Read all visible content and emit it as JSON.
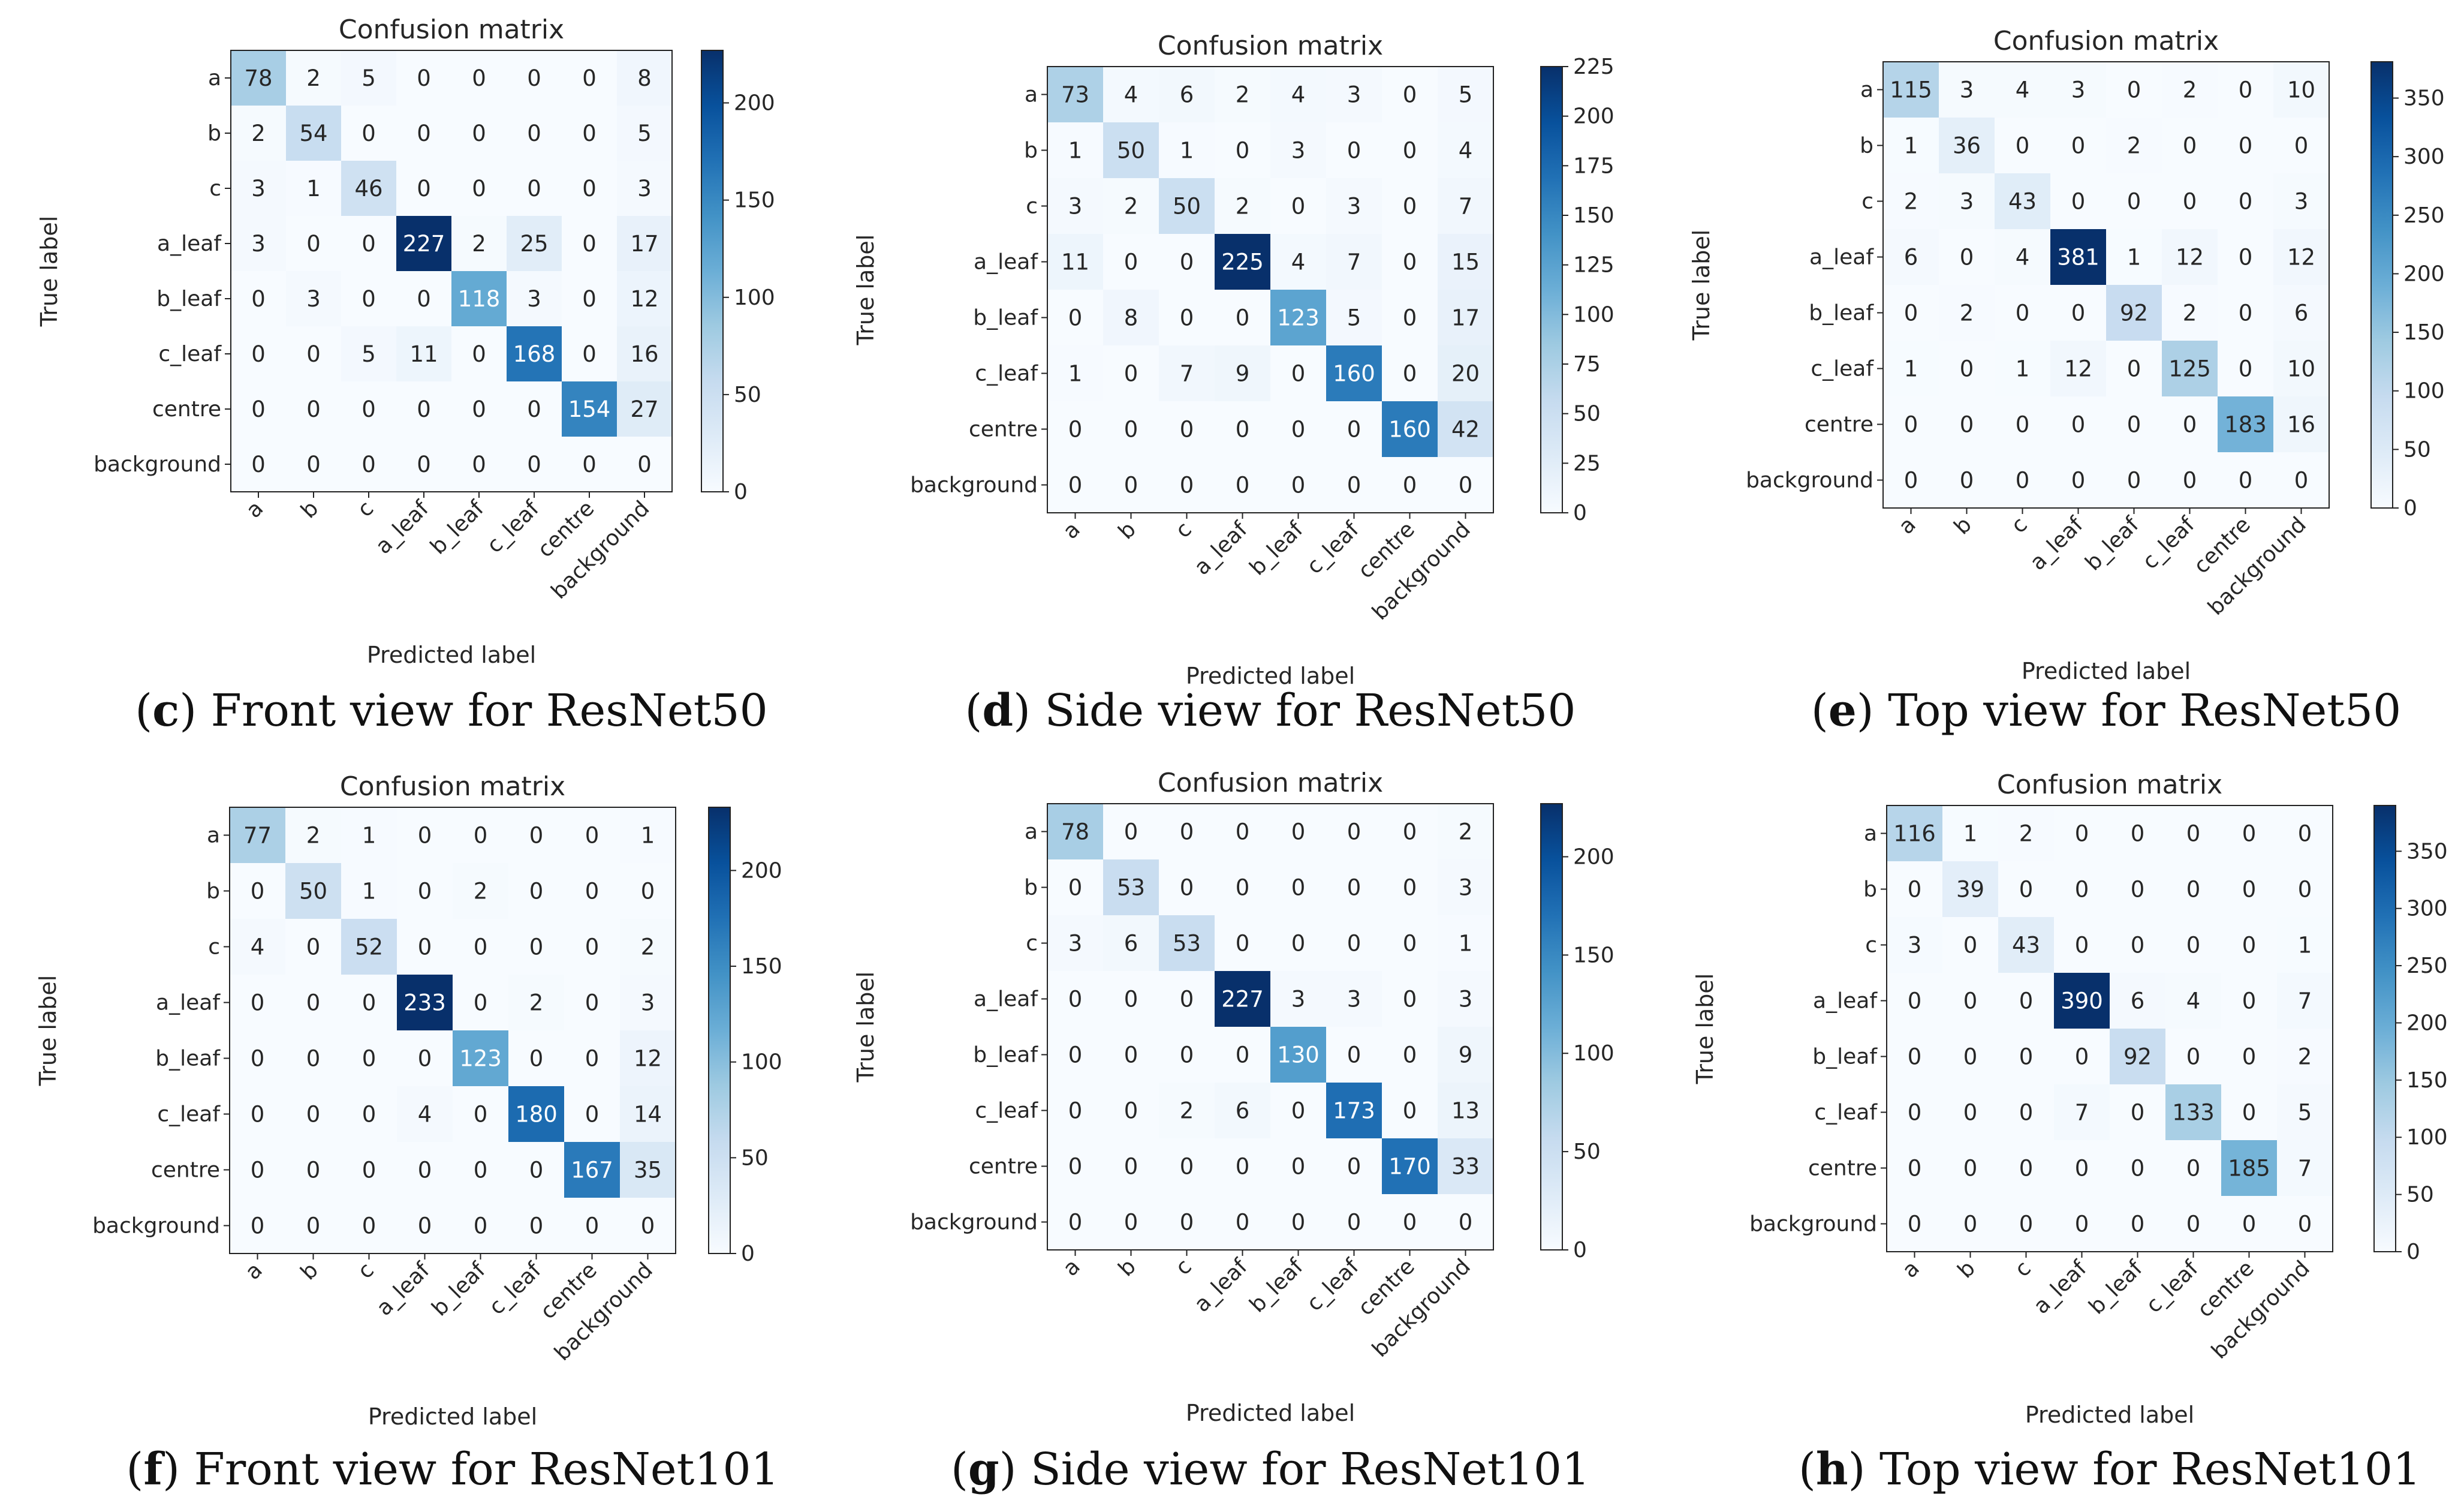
{
  "colors": {
    "low": "#f7fbff",
    "high": "#08306b",
    "text_dark": "#262626",
    "text_light": "#ffffff"
  },
  "chart_data": [
    {
      "type": "heatmap",
      "title": "Confusion matrix",
      "xlabel": "Predicted label",
      "ylabel": "True label",
      "row_labels": [
        "a",
        "b",
        "c",
        "a_leaf",
        "b_leaf",
        "c_leaf",
        "centre",
        "background"
      ],
      "col_labels": [
        "a",
        "b",
        "c",
        "a_leaf",
        "b_leaf",
        "c_leaf",
        "centre",
        "background"
      ],
      "values": [
        [
          78,
          2,
          5,
          0,
          0,
          0,
          0,
          8
        ],
        [
          2,
          54,
          0,
          0,
          0,
          0,
          0,
          5
        ],
        [
          3,
          1,
          46,
          0,
          0,
          0,
          0,
          3
        ],
        [
          3,
          0,
          0,
          227,
          2,
          25,
          0,
          17
        ],
        [
          0,
          3,
          0,
          0,
          118,
          3,
          0,
          12
        ],
        [
          0,
          0,
          5,
          11,
          0,
          168,
          0,
          16
        ],
        [
          0,
          0,
          0,
          0,
          0,
          0,
          154,
          27
        ],
        [
          0,
          0,
          0,
          0,
          0,
          0,
          0,
          0
        ]
      ],
      "colorbar_max": 227,
      "colorbar_ticks": [
        0,
        50,
        100,
        150,
        200
      ],
      "caption_letter": "c",
      "caption_text": "Front view for ResNet50"
    },
    {
      "type": "heatmap",
      "title": "Confusion matrix",
      "xlabel": "Predicted label",
      "ylabel": "True label",
      "row_labels": [
        "a",
        "b",
        "c",
        "a_leaf",
        "b_leaf",
        "c_leaf",
        "centre",
        "background"
      ],
      "col_labels": [
        "a",
        "b",
        "c",
        "a_leaf",
        "b_leaf",
        "c_leaf",
        "centre",
        "background"
      ],
      "values": [
        [
          73,
          4,
          6,
          2,
          4,
          3,
          0,
          5
        ],
        [
          1,
          50,
          1,
          0,
          3,
          0,
          0,
          4
        ],
        [
          3,
          2,
          50,
          2,
          0,
          3,
          0,
          7
        ],
        [
          11,
          0,
          0,
          225,
          4,
          7,
          0,
          15
        ],
        [
          0,
          8,
          0,
          0,
          123,
          5,
          0,
          17
        ],
        [
          1,
          0,
          7,
          9,
          0,
          160,
          0,
          20
        ],
        [
          0,
          0,
          0,
          0,
          0,
          0,
          160,
          42
        ],
        [
          0,
          0,
          0,
          0,
          0,
          0,
          0,
          0
        ]
      ],
      "colorbar_max": 225,
      "colorbar_ticks": [
        0,
        25,
        50,
        75,
        100,
        125,
        150,
        175,
        200,
        225
      ],
      "caption_letter": "d",
      "caption_text": "Side view for ResNet50"
    },
    {
      "type": "heatmap",
      "title": "Confusion matrix",
      "xlabel": "Predicted label",
      "ylabel": "True label",
      "row_labels": [
        "a",
        "b",
        "c",
        "a_leaf",
        "b_leaf",
        "c_leaf",
        "centre",
        "background"
      ],
      "col_labels": [
        "a",
        "b",
        "c",
        "a_leaf",
        "b_leaf",
        "c_leaf",
        "centre",
        "background"
      ],
      "values": [
        [
          115,
          3,
          4,
          3,
          0,
          2,
          0,
          10
        ],
        [
          1,
          36,
          0,
          0,
          2,
          0,
          0,
          0
        ],
        [
          2,
          3,
          43,
          0,
          0,
          0,
          0,
          3
        ],
        [
          6,
          0,
          4,
          381,
          1,
          12,
          0,
          12
        ],
        [
          0,
          2,
          0,
          0,
          92,
          2,
          0,
          6
        ],
        [
          1,
          0,
          1,
          12,
          0,
          125,
          0,
          10
        ],
        [
          0,
          0,
          0,
          0,
          0,
          0,
          183,
          16
        ],
        [
          0,
          0,
          0,
          0,
          0,
          0,
          0,
          0
        ]
      ],
      "colorbar_max": 381,
      "colorbar_ticks": [
        0,
        50,
        100,
        150,
        200,
        250,
        300,
        350
      ],
      "caption_letter": "e",
      "caption_text": "Top view for ResNet50"
    },
    {
      "type": "heatmap",
      "title": "Confusion matrix",
      "xlabel": "Predicted label",
      "ylabel": "True label",
      "row_labels": [
        "a",
        "b",
        "c",
        "a_leaf",
        "b_leaf",
        "c_leaf",
        "centre",
        "background"
      ],
      "col_labels": [
        "a",
        "b",
        "c",
        "a_leaf",
        "b_leaf",
        "c_leaf",
        "centre",
        "background"
      ],
      "values": [
        [
          77,
          2,
          1,
          0,
          0,
          0,
          0,
          1
        ],
        [
          0,
          50,
          1,
          0,
          2,
          0,
          0,
          0
        ],
        [
          4,
          0,
          52,
          0,
          0,
          0,
          0,
          2
        ],
        [
          0,
          0,
          0,
          233,
          0,
          2,
          0,
          3
        ],
        [
          0,
          0,
          0,
          0,
          123,
          0,
          0,
          12
        ],
        [
          0,
          0,
          0,
          4,
          0,
          180,
          0,
          14
        ],
        [
          0,
          0,
          0,
          0,
          0,
          0,
          167,
          35
        ],
        [
          0,
          0,
          0,
          0,
          0,
          0,
          0,
          0
        ]
      ],
      "colorbar_max": 233,
      "colorbar_ticks": [
        0,
        50,
        100,
        150,
        200
      ],
      "caption_letter": "f",
      "caption_text": "Front view for ResNet101"
    },
    {
      "type": "heatmap",
      "title": "Confusion matrix",
      "xlabel": "Predicted label",
      "ylabel": "True label",
      "row_labels": [
        "a",
        "b",
        "c",
        "a_leaf",
        "b_leaf",
        "c_leaf",
        "centre",
        "background"
      ],
      "col_labels": [
        "a",
        "b",
        "c",
        "a_leaf",
        "b_leaf",
        "c_leaf",
        "centre",
        "background"
      ],
      "values": [
        [
          78,
          0,
          0,
          0,
          0,
          0,
          0,
          2
        ],
        [
          0,
          53,
          0,
          0,
          0,
          0,
          0,
          3
        ],
        [
          3,
          6,
          53,
          0,
          0,
          0,
          0,
          1
        ],
        [
          0,
          0,
          0,
          227,
          3,
          3,
          0,
          3
        ],
        [
          0,
          0,
          0,
          0,
          130,
          0,
          0,
          9
        ],
        [
          0,
          0,
          2,
          6,
          0,
          173,
          0,
          13
        ],
        [
          0,
          0,
          0,
          0,
          0,
          0,
          170,
          33
        ],
        [
          0,
          0,
          0,
          0,
          0,
          0,
          0,
          0
        ]
      ],
      "colorbar_max": 227,
      "colorbar_ticks": [
        0,
        50,
        100,
        150,
        200
      ],
      "caption_letter": "g",
      "caption_text": "Side view for ResNet101"
    },
    {
      "type": "heatmap",
      "title": "Confusion matrix",
      "xlabel": "Predicted label",
      "ylabel": "True label",
      "row_labels": [
        "a",
        "b",
        "c",
        "a_leaf",
        "b_leaf",
        "c_leaf",
        "centre",
        "background"
      ],
      "col_labels": [
        "a",
        "b",
        "c",
        "a_leaf",
        "b_leaf",
        "c_leaf",
        "centre",
        "background"
      ],
      "values": [
        [
          116,
          1,
          2,
          0,
          0,
          0,
          0,
          0
        ],
        [
          0,
          39,
          0,
          0,
          0,
          0,
          0,
          0
        ],
        [
          3,
          0,
          43,
          0,
          0,
          0,
          0,
          1
        ],
        [
          0,
          0,
          0,
          390,
          6,
          4,
          0,
          7
        ],
        [
          0,
          0,
          0,
          0,
          92,
          0,
          0,
          2
        ],
        [
          0,
          0,
          0,
          7,
          0,
          133,
          0,
          5
        ],
        [
          0,
          0,
          0,
          0,
          0,
          0,
          185,
          7
        ],
        [
          0,
          0,
          0,
          0,
          0,
          0,
          0,
          0
        ]
      ],
      "colorbar_max": 390,
      "colorbar_ticks": [
        0,
        50,
        100,
        150,
        200,
        250,
        300,
        350
      ],
      "caption_letter": "h",
      "caption_text": "Top view for ResNet101"
    }
  ]
}
